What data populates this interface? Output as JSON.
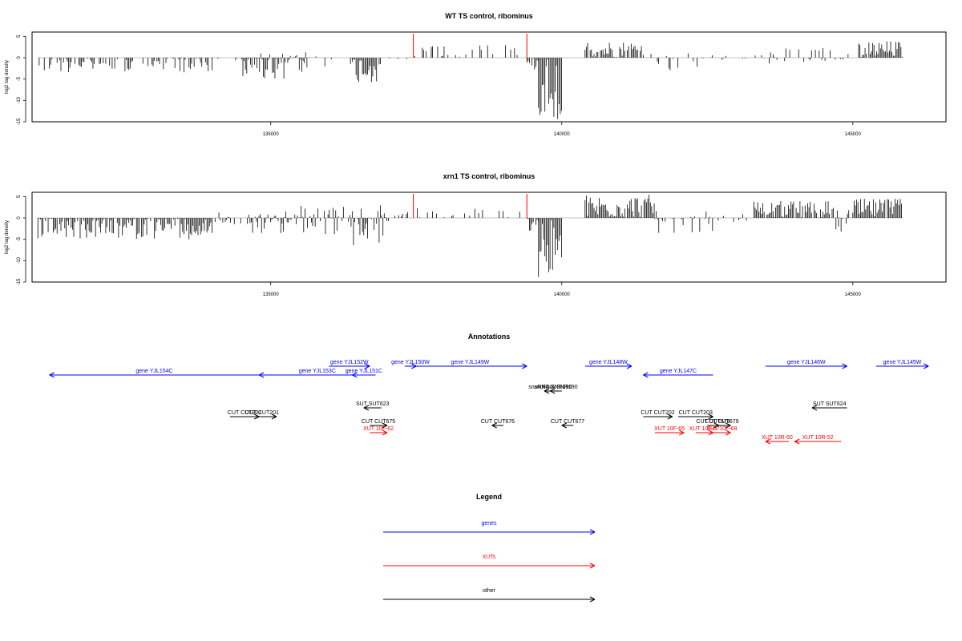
{
  "colors": {
    "gene": "#0000ff",
    "xut": "#ff0000",
    "other": "#000000",
    "highlight": "#ff0000",
    "bars": "#000000"
  },
  "chart_data": [
    {
      "type": "bar",
      "title": "WT TS control, ribominus",
      "ylabel": "log2 tag density",
      "xlim": [
        130900,
        146600
      ],
      "ylim": [
        -15,
        6
      ],
      "xticks": [
        135000,
        140000,
        145000
      ],
      "yticks": [
        5,
        0,
        -5,
        -10,
        -15
      ],
      "markers": [
        137450,
        139400
      ],
      "regions": [
        {
          "from": 131000,
          "to": 134000,
          "min": -3.5,
          "max": 0,
          "density": 0.55
        },
        {
          "from": 134000,
          "to": 134500,
          "min": -1.0,
          "max": 0.5,
          "density": 0.3
        },
        {
          "from": 134500,
          "to": 135600,
          "min": -5.0,
          "max": 1.0,
          "density": 0.95
        },
        {
          "from": 135600,
          "to": 136400,
          "min": -2.5,
          "max": 1.5,
          "density": 0.35
        },
        {
          "from": 136400,
          "to": 136900,
          "min": -6.0,
          "max": 0,
          "density": 0.95
        },
        {
          "from": 136900,
          "to": 137400,
          "min": -1.0,
          "max": 0.5,
          "density": 0.2
        },
        {
          "from": 137450,
          "to": 139300,
          "min": 0,
          "max": 3.0,
          "density": 0.35
        },
        {
          "from": 139400,
          "to": 139600,
          "min": -3.0,
          "max": 0,
          "density": 0.9
        },
        {
          "from": 139600,
          "to": 140000,
          "min": -15.0,
          "max": 0,
          "density": 1.0
        },
        {
          "from": 140400,
          "to": 141400,
          "min": 0,
          "max": 4.0,
          "density": 0.95
        },
        {
          "from": 141400,
          "to": 142600,
          "min": -3.0,
          "max": 1.5,
          "density": 0.3
        },
        {
          "from": 142600,
          "to": 143300,
          "min": -1.5,
          "max": 0.5,
          "density": 0.12
        },
        {
          "from": 143300,
          "to": 144500,
          "min": -1.5,
          "max": 2.5,
          "density": 0.45
        },
        {
          "from": 144500,
          "to": 145000,
          "min": -1.5,
          "max": 2.0,
          "density": 0.3
        },
        {
          "from": 145100,
          "to": 145850,
          "min": 0,
          "max": 4.0,
          "density": 0.95
        }
      ]
    },
    {
      "type": "bar",
      "title": "xrn1 TS control, ribominus",
      "ylabel": "log2 tag density",
      "xlim": [
        130900,
        146600
      ],
      "ylim": [
        -15,
        6
      ],
      "xticks": [
        135000,
        140000,
        145000
      ],
      "yticks": [
        5,
        0,
        -5,
        -10,
        -15
      ],
      "markers": [
        137450,
        139400
      ],
      "regions": [
        {
          "from": 131000,
          "to": 134000,
          "min": -5.0,
          "max": 0,
          "density": 0.95
        },
        {
          "from": 134000,
          "to": 134600,
          "min": -1.5,
          "max": 1.5,
          "density": 0.4
        },
        {
          "from": 134600,
          "to": 135500,
          "min": -5.0,
          "max": 2.0,
          "density": 0.95
        },
        {
          "from": 135500,
          "to": 136400,
          "min": -4.0,
          "max": 3.0,
          "density": 0.85
        },
        {
          "from": 136400,
          "to": 137000,
          "min": -7.0,
          "max": 3.0,
          "density": 0.95
        },
        {
          "from": 137000,
          "to": 137400,
          "min": -1.0,
          "max": 1.5,
          "density": 0.3
        },
        {
          "from": 137450,
          "to": 139300,
          "min": 0,
          "max": 2.5,
          "density": 0.3
        },
        {
          "from": 139400,
          "to": 139600,
          "min": -3.0,
          "max": 0,
          "density": 0.9
        },
        {
          "from": 139600,
          "to": 140000,
          "min": -15.0,
          "max": 0,
          "density": 1.0
        },
        {
          "from": 140400,
          "to": 141600,
          "min": 0,
          "max": 5.5,
          "density": 1.0
        },
        {
          "from": 141600,
          "to": 142600,
          "min": -3.5,
          "max": 2.5,
          "density": 0.6
        },
        {
          "from": 142600,
          "to": 143300,
          "min": -1.0,
          "max": 1.5,
          "density": 0.2
        },
        {
          "from": 143300,
          "to": 144600,
          "min": 0,
          "max": 4.0,
          "density": 0.85
        },
        {
          "from": 144600,
          "to": 145000,
          "min": -3.5,
          "max": 2.5,
          "density": 0.6
        },
        {
          "from": 145000,
          "to": 145850,
          "min": 0,
          "max": 4.5,
          "density": 0.95
        }
      ]
    }
  ],
  "annotations": {
    "title": "Annotations",
    "features": [
      {
        "label": "gene YJL154C",
        "type": "gene",
        "from": 131200,
        "to": 134800,
        "lane": 1,
        "strand": "-"
      },
      {
        "label": "gene YJL153C",
        "type": "gene",
        "from": 134800,
        "to": 136800,
        "lane": 1,
        "strand": "-"
      },
      {
        "label": "gene YJL152W",
        "type": "gene",
        "from": 136000,
        "to": 136700,
        "lane": 0,
        "strand": "+"
      },
      {
        "label": "gene YJL151C",
        "type": "gene",
        "from": 136400,
        "to": 136800,
        "lane": 1,
        "strand": "-"
      },
      {
        "label": "gene YJL150W",
        "type": "gene",
        "from": 137300,
        "to": 137500,
        "lane": 0,
        "strand": "+"
      },
      {
        "label": "gene YJL149W",
        "type": "gene",
        "from": 137450,
        "to": 139400,
        "lane": 0,
        "strand": "+"
      },
      {
        "label": "gene YJL148W",
        "type": "gene",
        "from": 140400,
        "to": 141200,
        "lane": 0,
        "strand": "+"
      },
      {
        "label": "gene YJL147C",
        "type": "gene",
        "from": 141400,
        "to": 142600,
        "lane": 1,
        "strand": "-"
      },
      {
        "label": "gene YJL146W",
        "type": "gene",
        "from": 143500,
        "to": 144900,
        "lane": 0,
        "strand": "+"
      },
      {
        "label": "gene YJL145W",
        "type": "gene",
        "from": 145400,
        "to": 146300,
        "lane": 0,
        "strand": "+"
      },
      {
        "label": "snoRNA SNR190",
        "type": "other",
        "from": 139700,
        "to": 139900,
        "lane": 3,
        "strand": "-"
      },
      {
        "label": "snoRNA SNR190",
        "type": "other",
        "from": 139800,
        "to": 140000,
        "lane": 3,
        "strand": "-"
      },
      {
        "label": "SUT SUT623",
        "type": "other",
        "from": 136600,
        "to": 136900,
        "lane": 5,
        "strand": "-"
      },
      {
        "label": "SUT SUT624",
        "type": "other",
        "from": 144300,
        "to": 144900,
        "lane": 5,
        "strand": "-"
      },
      {
        "label": "CUT CUT201",
        "type": "other",
        "from": 134300,
        "to": 134800,
        "lane": 6,
        "strand": "+"
      },
      {
        "label": "CUT CUT201",
        "type": "other",
        "from": 134600,
        "to": 135100,
        "lane": 6,
        "strand": "+"
      },
      {
        "label": "CUT CUT202",
        "type": "other",
        "from": 141400,
        "to": 141900,
        "lane": 6,
        "strand": "+"
      },
      {
        "label": "CUT CUT203",
        "type": "other",
        "from": 142000,
        "to": 142600,
        "lane": 6,
        "strand": "+"
      },
      {
        "label": "CUT CUT675",
        "type": "other",
        "from": 136700,
        "to": 137000,
        "lane": 7,
        "strand": "+"
      },
      {
        "label": "CUT CUT676",
        "type": "other",
        "from": 138800,
        "to": 139000,
        "lane": 7,
        "strand": "-"
      },
      {
        "label": "CUT CUT677",
        "type": "other",
        "from": 140000,
        "to": 140200,
        "lane": 7,
        "strand": "-"
      },
      {
        "label": "CUT CUT678",
        "type": "other",
        "from": 142500,
        "to": 142700,
        "lane": 7,
        "strand": "+"
      },
      {
        "label": "CUT CUT679",
        "type": "other",
        "from": 142600,
        "to": 142900,
        "lane": 7,
        "strand": "+"
      },
      {
        "label": "XUT 10F-62",
        "type": "xut",
        "from": 136700,
        "to": 137000,
        "lane": 8,
        "strand": "+"
      },
      {
        "label": "XUT 10F-65",
        "type": "xut",
        "from": 141600,
        "to": 142100,
        "lane": 8,
        "strand": "+"
      },
      {
        "label": "XUT 10F-67",
        "type": "xut",
        "from": 142300,
        "to": 142600,
        "lane": 8,
        "strand": "+"
      },
      {
        "label": "XUT 10F-68",
        "type": "xut",
        "from": 142600,
        "to": 142900,
        "lane": 8,
        "strand": "+"
      },
      {
        "label": "XUT 10R-50",
        "type": "xut",
        "from": 143500,
        "to": 143900,
        "lane": 9,
        "strand": "-"
      },
      {
        "label": "XUT 10R-52",
        "type": "xut",
        "from": 144000,
        "to": 144800,
        "lane": 9,
        "strand": "-"
      }
    ]
  },
  "legend": {
    "title": "Legend",
    "items": [
      {
        "label": "genes",
        "type": "gene"
      },
      {
        "label": "XUTs",
        "type": "xut"
      },
      {
        "label": "other",
        "type": "other"
      }
    ]
  }
}
